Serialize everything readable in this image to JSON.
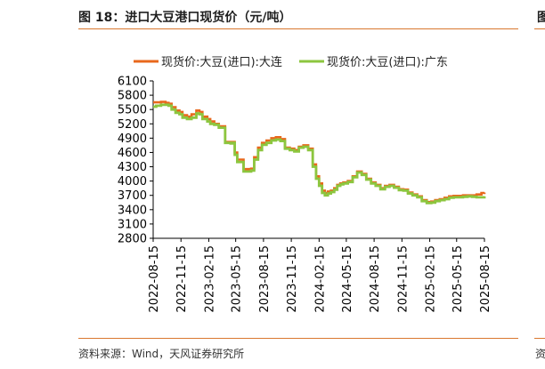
{
  "figure": {
    "title": "图 18：进口大豆港口现货价（元/吨）",
    "source": "资料来源：Wind，天风证券研究所",
    "edge_title_glyph": "图",
    "edge_source_glyph": "资"
  },
  "chart_data": {
    "type": "line",
    "title": "",
    "xlabel": "",
    "ylabel": "",
    "ylim": [
      2800,
      6100
    ],
    "yticks": [
      2800,
      3100,
      3400,
      3700,
      4000,
      4300,
      4600,
      4900,
      5200,
      5500,
      5800,
      6100
    ],
    "xlim": [
      "2022-08-15",
      "2025-08-15"
    ],
    "xticks": [
      "2022-08-15",
      "2022-11-15",
      "2023-02-15",
      "2023-05-15",
      "2023-08-15",
      "2023-11-15",
      "2024-02-15",
      "2024-05-15",
      "2024-08-15",
      "2024-11-15",
      "2025-02-15",
      "2025-05-15",
      "2025-08-15"
    ],
    "legend_position": "top",
    "grid": false,
    "series": [
      {
        "name": "现货价:大豆(进口):大连",
        "color": "#e8681c",
        "x": [
          "2022-08-15",
          "2022-08-25",
          "2022-09-10",
          "2022-09-25",
          "2022-10-05",
          "2022-10-15",
          "2022-10-28",
          "2022-11-10",
          "2022-11-20",
          "2022-12-05",
          "2022-12-20",
          "2023-01-05",
          "2023-01-15",
          "2023-01-25",
          "2023-02-10",
          "2023-02-20",
          "2023-03-05",
          "2023-03-20",
          "2023-04-10",
          "2023-04-28",
          "2023-05-05",
          "2023-05-12",
          "2023-05-20",
          "2023-06-10",
          "2023-06-25",
          "2023-07-05",
          "2023-07-15",
          "2023-07-28",
          "2023-08-10",
          "2023-08-25",
          "2023-09-10",
          "2023-09-25",
          "2023-10-10",
          "2023-10-25",
          "2023-11-10",
          "2023-11-25",
          "2023-12-10",
          "2023-12-25",
          "2024-01-10",
          "2024-01-25",
          "2024-02-05",
          "2024-02-15",
          "2024-02-25",
          "2024-03-05",
          "2024-03-15",
          "2024-03-25",
          "2024-04-05",
          "2024-04-15",
          "2024-04-25",
          "2024-05-05",
          "2024-05-20",
          "2024-06-05",
          "2024-06-20",
          "2024-07-05",
          "2024-07-20",
          "2024-08-05",
          "2024-08-20",
          "2024-09-05",
          "2024-09-20",
          "2024-10-05",
          "2024-10-20",
          "2024-11-05",
          "2024-11-20",
          "2024-12-05",
          "2024-12-20",
          "2025-01-05",
          "2025-01-20",
          "2025-02-05",
          "2025-02-20",
          "2025-03-05",
          "2025-03-20",
          "2025-04-05",
          "2025-04-20",
          "2025-05-05",
          "2025-05-20",
          "2025-06-05",
          "2025-06-20",
          "2025-07-05",
          "2025-07-20",
          "2025-08-05",
          "2025-08-15"
        ],
        "values": [
          5650,
          5650,
          5660,
          5640,
          5620,
          5550,
          5480,
          5450,
          5380,
          5350,
          5400,
          5480,
          5450,
          5350,
          5300,
          5250,
          5200,
          5150,
          4820,
          4820,
          4820,
          4600,
          4450,
          4250,
          4250,
          4260,
          4500,
          4700,
          4800,
          4850,
          4900,
          4920,
          4880,
          4700,
          4680,
          4650,
          4720,
          4750,
          4680,
          4350,
          4100,
          3950,
          3800,
          3750,
          3780,
          3800,
          3850,
          3920,
          3950,
          3970,
          4000,
          4100,
          4200,
          4150,
          4050,
          3970,
          3920,
          3850,
          3900,
          3920,
          3880,
          3830,
          3820,
          3760,
          3720,
          3680,
          3600,
          3560,
          3570,
          3600,
          3620,
          3650,
          3680,
          3690,
          3690,
          3700,
          3700,
          3700,
          3720,
          3750,
          3760
        ]
      },
      {
        "name": "现货价:大豆(进口):广东",
        "color": "#8cc63f",
        "x": [
          "2022-08-15",
          "2022-08-25",
          "2022-09-10",
          "2022-09-25",
          "2022-10-05",
          "2022-10-15",
          "2022-10-28",
          "2022-11-10",
          "2022-11-20",
          "2022-12-05",
          "2022-12-20",
          "2023-01-05",
          "2023-01-15",
          "2023-01-25",
          "2023-02-10",
          "2023-02-20",
          "2023-03-05",
          "2023-03-20",
          "2023-04-10",
          "2023-04-28",
          "2023-05-05",
          "2023-05-12",
          "2023-05-20",
          "2023-06-10",
          "2023-06-25",
          "2023-07-05",
          "2023-07-15",
          "2023-07-28",
          "2023-08-10",
          "2023-08-25",
          "2023-09-10",
          "2023-09-25",
          "2023-10-10",
          "2023-10-25",
          "2023-11-10",
          "2023-11-25",
          "2023-12-10",
          "2023-12-25",
          "2024-01-10",
          "2024-01-25",
          "2024-02-05",
          "2024-02-15",
          "2024-02-25",
          "2024-03-05",
          "2024-03-15",
          "2024-03-25",
          "2024-04-05",
          "2024-04-15",
          "2024-04-25",
          "2024-05-05",
          "2024-05-20",
          "2024-06-05",
          "2024-06-20",
          "2024-07-05",
          "2024-07-20",
          "2024-08-05",
          "2024-08-20",
          "2024-09-05",
          "2024-09-20",
          "2024-10-05",
          "2024-10-20",
          "2024-11-05",
          "2024-11-20",
          "2024-12-05",
          "2024-12-20",
          "2025-01-05",
          "2025-01-20",
          "2025-02-05",
          "2025-02-20",
          "2025-03-05",
          "2025-03-20",
          "2025-04-05",
          "2025-04-20",
          "2025-05-05",
          "2025-05-20",
          "2025-06-05",
          "2025-06-20",
          "2025-07-05",
          "2025-07-20",
          "2025-08-05",
          "2025-08-15"
        ],
        "values": [
          5560,
          5580,
          5600,
          5600,
          5580,
          5500,
          5430,
          5400,
          5330,
          5300,
          5330,
          5420,
          5400,
          5300,
          5250,
          5200,
          5180,
          5120,
          4800,
          4790,
          4800,
          4550,
          4400,
          4200,
          4200,
          4220,
          4450,
          4650,
          4760,
          4800,
          4850,
          4870,
          4840,
          4680,
          4650,
          4620,
          4700,
          4720,
          4650,
          4300,
          4050,
          3900,
          3750,
          3700,
          3740,
          3770,
          3820,
          3900,
          3930,
          3950,
          3980,
          4080,
          4180,
          4130,
          4030,
          3950,
          3900,
          3830,
          3880,
          3900,
          3860,
          3810,
          3800,
          3740,
          3700,
          3660,
          3580,
          3540,
          3550,
          3580,
          3600,
          3620,
          3650,
          3660,
          3660,
          3670,
          3680,
          3670,
          3660,
          3660,
          3680
        ]
      }
    ]
  }
}
